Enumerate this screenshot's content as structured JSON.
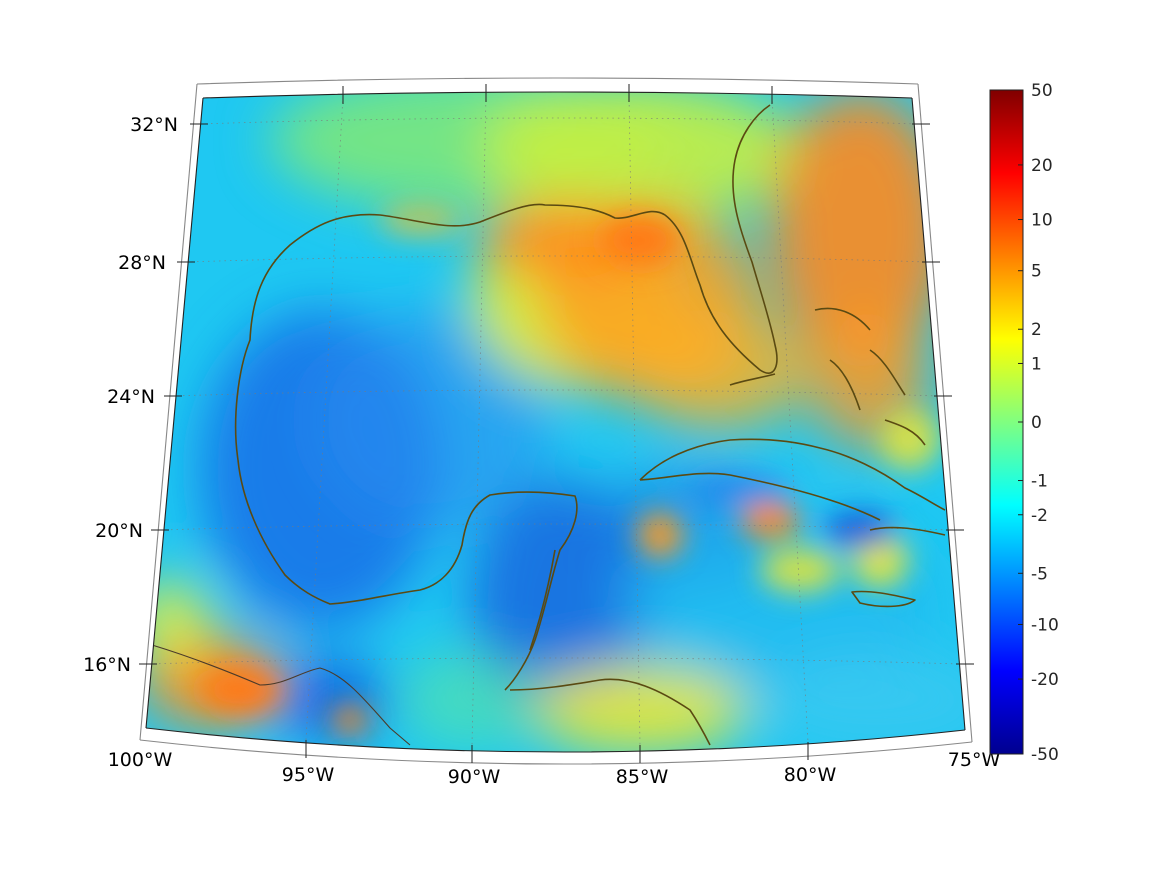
{
  "map": {
    "projection": "conic",
    "lon_range": [
      -100,
      -75
    ],
    "lat_range": [
      14,
      33
    ],
    "region_labels": [],
    "lon_ticks": [
      {
        "lon": -100,
        "label": "100°W"
      },
      {
        "lon": -95,
        "label": "95°W"
      },
      {
        "lon": -90,
        "label": "90°W"
      },
      {
        "lon": -85,
        "label": "85°W"
      },
      {
        "lon": -80,
        "label": "80°W"
      },
      {
        "lon": -75,
        "label": "75°W"
      }
    ],
    "lat_ticks": [
      {
        "lat": 16,
        "label": "16°N"
      },
      {
        "lat": 20,
        "label": "20°N"
      },
      {
        "lat": 24,
        "label": "24°N"
      },
      {
        "lat": 28,
        "label": "28°N"
      },
      {
        "lat": 32,
        "label": "32°N"
      }
    ],
    "grid": "dotted",
    "coastline_color": "#5a4a12",
    "border_color": "#4a3a2a"
  },
  "colorbar": {
    "colormap": "jet",
    "scale": "symmetric-log",
    "placement": "right",
    "ticks": [
      "50",
      "20",
      "10",
      "5",
      "2",
      "1",
      "0",
      "-1",
      "-2",
      "-5",
      "-10",
      "-20",
      "-50"
    ],
    "colors": [
      "#00008f",
      "#0000ff",
      "#0080ff",
      "#00ffff",
      "#80ff80",
      "#ffff00",
      "#ff8000",
      "#ff0000",
      "#800000"
    ]
  }
}
